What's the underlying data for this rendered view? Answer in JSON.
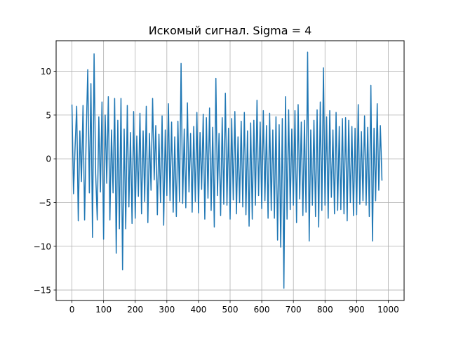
{
  "chart_data": {
    "type": "line",
    "title": "Искомый сигнал. Sigma = 4",
    "xlabel": "",
    "ylabel": "",
    "xlim": [
      -50,
      1050
    ],
    "ylim": [
      -16.2,
      13.5
    ],
    "grid": true,
    "x_ticks": [
      0,
      100,
      200,
      300,
      400,
      500,
      600,
      700,
      800,
      900,
      1000
    ],
    "y_ticks": [
      -15,
      -10,
      -5,
      0,
      5,
      10
    ],
    "series": [
      {
        "color": "#1f77b4",
        "x_start": 0,
        "x_step": 5,
        "values": [
          6.2,
          -4,
          1.4,
          6,
          -7.1,
          3.2,
          -2.6,
          6.1,
          -7,
          2.5,
          10.2,
          -3.9,
          8.6,
          -9,
          12,
          -1.7,
          -7,
          4.8,
          -3.8,
          6.5,
          -9.2,
          5,
          -2.8,
          7.1,
          -7,
          3.3,
          -3.9,
          6.9,
          -10.8,
          4.4,
          -8,
          6.9,
          -12.7,
          3.4,
          -8,
          6.1,
          -5.5,
          3,
          -7.4,
          5.4,
          -6.8,
          2.6,
          -4.3,
          5.2,
          -6.3,
          3.2,
          -4.9,
          6,
          -7.3,
          2.9,
          -3.6,
          6.9,
          -2.4,
          3.8,
          -6.4,
          2.8,
          -5,
          4.9,
          -7.6,
          3.3,
          -4.2,
          6.3,
          -4.8,
          4.2,
          -6.1,
          2.5,
          -6.6,
          4.3,
          -4.9,
          10.9,
          -5.1,
          3.4,
          -5.6,
          6.4,
          -3.8,
          2.9,
          -6.1,
          3.7,
          -4.9,
          5.3,
          -6.2,
          3,
          -3.5,
          5.1,
          -6.9,
          4.7,
          -4.5,
          5.8,
          -5.9,
          3.6,
          -7.8,
          9.2,
          -4.2,
          2.9,
          -6.5,
          4.7,
          -5.2,
          7.5,
          -5.3,
          3.5,
          -6.9,
          4.6,
          -4.7,
          5.4,
          -6.3,
          2.5,
          -5,
          4.3,
          -5.5,
          5.3,
          -6.4,
          3.2,
          -7.7,
          4.1,
          -6.9,
          4.4,
          -5.3,
          6.7,
          -4.2,
          4.2,
          -5.7,
          5.5,
          -4.8,
          3.8,
          -6.8,
          5.2,
          -5.9,
          3.3,
          -6.8,
          4.8,
          -9.3,
          3.9,
          -10.1,
          4.6,
          -14.8,
          7.1,
          -6.9,
          5.6,
          -5.8,
          3.4,
          -5.3,
          5.5,
          -7.3,
          6.2,
          -4.6,
          4.2,
          -6.5,
          4.4,
          -6.1,
          12.2,
          -9.4,
          3.3,
          -5.3,
          4.4,
          -6.6,
          5.6,
          -7.8,
          6.5,
          -5.9,
          10.4,
          -5.3,
          4.8,
          -6.8,
          5.5,
          -4.4,
          3.3,
          -6.3,
          5.3,
          -5.9,
          3.7,
          -5.8,
          4.6,
          -6.3,
          4.7,
          -7.1,
          4.4,
          -5,
          3.7,
          -6.5,
          3.5,
          -6.4,
          6.2,
          -5.2,
          3.1,
          -4.8,
          4.9,
          -5.3,
          3.6,
          -6.6,
          8.4,
          -9.4,
          3.5,
          -4.8,
          6.3,
          -3.6,
          3.8,
          -2.5
        ]
      }
    ]
  }
}
